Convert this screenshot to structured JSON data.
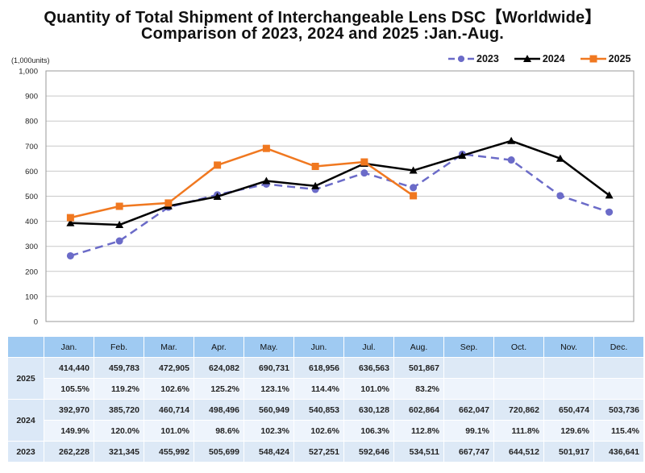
{
  "chart_data": {
    "type": "line",
    "title": "Quantity of Total Shipment of Interchangeable Lens DSC【Worldwide】",
    "subtitle": "Comparison of 2023, 2024 and 2025 :Jan.-Aug.",
    "ylabel": "(1,000units)",
    "xlabel": "",
    "ylim": [
      0,
      1000
    ],
    "yticks": [
      "0",
      "100",
      "200",
      "300",
      "400",
      "500",
      "600",
      "700",
      "800",
      "900",
      "1,000"
    ],
    "ytick_values": [
      0,
      100,
      200,
      300,
      400,
      500,
      600,
      700,
      800,
      900,
      1000
    ],
    "grid": true,
    "legend_position": "top-right",
    "categories": [
      "Jan.",
      "Feb.",
      "Mar.",
      "Apr.",
      "May.",
      "Jun.",
      "Jul.",
      "Aug.",
      "Sep.",
      "Oct.",
      "Nov.",
      "Dec."
    ],
    "series": [
      {
        "name": "2023",
        "color": "#6b6bc8",
        "marker": "circle",
        "dashed": true,
        "values": [
          262.228,
          321.345,
          455.992,
          505.699,
          548.424,
          527.251,
          592.646,
          534.511,
          667.747,
          644.512,
          501.917,
          436.641
        ]
      },
      {
        "name": "2024",
        "color": "#000000",
        "marker": "triangle",
        "dashed": false,
        "values": [
          392.97,
          385.72,
          460.714,
          498.496,
          560.949,
          540.853,
          630.128,
          602.864,
          662.047,
          720.862,
          650.474,
          503.736
        ]
      },
      {
        "name": "2025",
        "color": "#f07820",
        "marker": "square",
        "dashed": false,
        "values": [
          414.44,
          459.783,
          472.905,
          624.082,
          690.731,
          618.956,
          636.563,
          501.867
        ]
      }
    ]
  },
  "table": {
    "months": [
      "Jan.",
      "Feb.",
      "Mar.",
      "Apr.",
      "May.",
      "Jun.",
      "Jul.",
      "Aug.",
      "Sep.",
      "Oct.",
      "Nov.",
      "Dec."
    ],
    "rows": [
      {
        "year": "2025",
        "values": [
          "414,440",
          "459,783",
          "472,905",
          "624,082",
          "690,731",
          "618,956",
          "636,563",
          "501,867",
          "",
          "",
          "",
          ""
        ],
        "pct": [
          "105.5%",
          "119.2%",
          "102.6%",
          "125.2%",
          "123.1%",
          "114.4%",
          "101.0%",
          "83.2%",
          "",
          "",
          "",
          ""
        ]
      },
      {
        "year": "2024",
        "values": [
          "392,970",
          "385,720",
          "460,714",
          "498,496",
          "560,949",
          "540,853",
          "630,128",
          "602,864",
          "662,047",
          "720,862",
          "650,474",
          "503,736"
        ],
        "pct": [
          "149.9%",
          "120.0%",
          "101.0%",
          "98.6%",
          "102.3%",
          "102.6%",
          "106.3%",
          "112.8%",
          "99.1%",
          "111.8%",
          "129.6%",
          "115.4%"
        ]
      },
      {
        "year": "2023",
        "values": [
          "262,228",
          "321,345",
          "455,992",
          "505,699",
          "548,424",
          "527,251",
          "592,646",
          "534,511",
          "667,747",
          "644,512",
          "501,917",
          "436,641"
        ]
      }
    ]
  }
}
